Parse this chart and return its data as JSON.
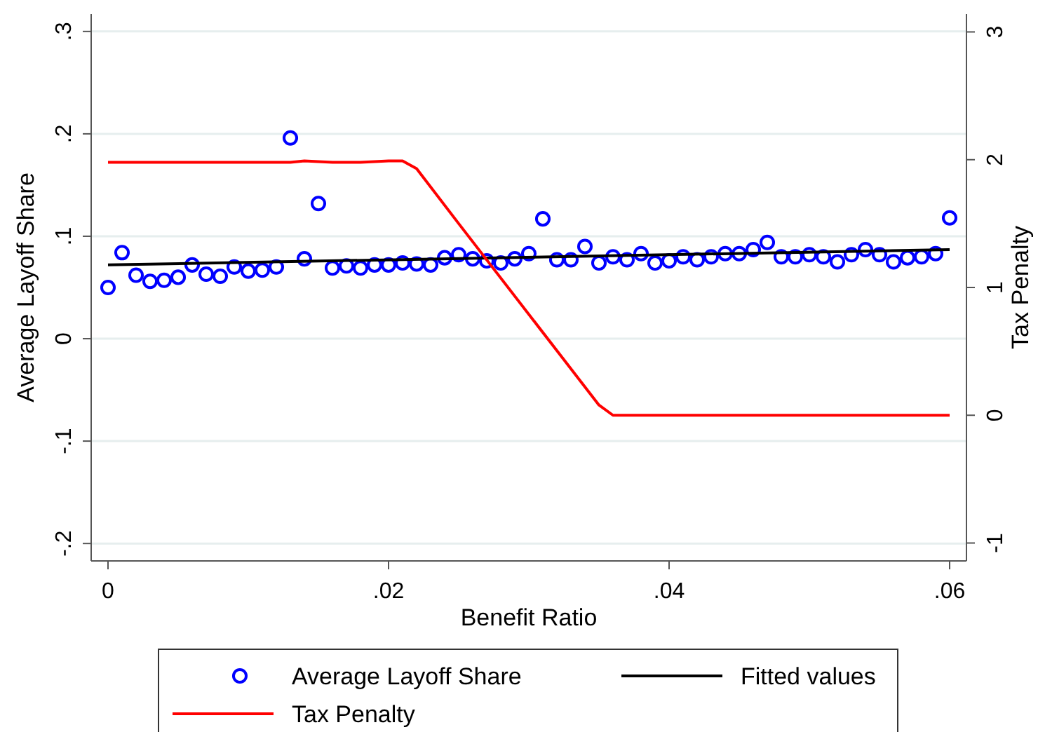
{
  "chart_data": {
    "type": "scatter",
    "xlabel": "Benefit Ratio",
    "ylabel": "Average Layoff Share",
    "y2label": "Tax Penalty",
    "xlim": [
      -0.0012,
      0.0612
    ],
    "xticks": [
      {
        "value": 0,
        "label": "0"
      },
      {
        "value": 0.02,
        "label": ".02"
      },
      {
        "value": 0.04,
        "label": ".04"
      },
      {
        "value": 0.06,
        "label": ".06"
      }
    ],
    "ylim": [
      -0.217,
      0.317
    ],
    "yticks": [
      {
        "value": -0.2,
        "label": "-.2"
      },
      {
        "value": -0.1,
        "label": "-.1"
      },
      {
        "value": 0,
        "label": "0"
      },
      {
        "value": 0.1,
        "label": ".1"
      },
      {
        "value": 0.2,
        "label": ".2"
      },
      {
        "value": 0.3,
        "label": ".3"
      }
    ],
    "y2lim": [
      -1.14,
      3.14
    ],
    "y2ticks": [
      -1,
      0,
      1,
      2,
      3
    ],
    "grid": "y",
    "legend": "bottom",
    "series": [
      {
        "name": "Average Layoff Share",
        "marker": "circle",
        "color": "#0000ff",
        "x": [
          0,
          0.001,
          0.002,
          0.003,
          0.004,
          0.005,
          0.006,
          0.007,
          0.008,
          0.009,
          0.01,
          0.011,
          0.012,
          0.013,
          0.014,
          0.015,
          0.016,
          0.017,
          0.018,
          0.019,
          0.02,
          0.021,
          0.022,
          0.023,
          0.024,
          0.025,
          0.026,
          0.027,
          0.028,
          0.029,
          0.03,
          0.031,
          0.032,
          0.033,
          0.034,
          0.035,
          0.036,
          0.037,
          0.038,
          0.039,
          0.04,
          0.041,
          0.042,
          0.043,
          0.044,
          0.045,
          0.046,
          0.047,
          0.048,
          0.049,
          0.05,
          0.051,
          0.052,
          0.053,
          0.054,
          0.055,
          0.056,
          0.057,
          0.058,
          0.059,
          0.06
        ],
        "values": [
          0.05,
          0.084,
          0.062,
          0.056,
          0.057,
          0.06,
          0.072,
          0.063,
          0.061,
          0.07,
          0.066,
          0.067,
          0.07,
          0.196,
          0.078,
          0.132,
          0.069,
          0.071,
          0.069,
          0.072,
          0.072,
          0.074,
          0.073,
          0.072,
          0.079,
          0.082,
          0.078,
          0.076,
          0.074,
          0.078,
          0.083,
          0.117,
          0.077,
          0.077,
          0.09,
          0.074,
          0.08,
          0.077,
          0.083,
          0.074,
          0.076,
          0.08,
          0.077,
          0.08,
          0.083,
          0.083,
          0.087,
          0.094,
          0.08,
          0.08,
          0.082,
          0.08,
          0.075,
          0.082,
          0.087,
          0.082,
          0.075,
          0.079,
          0.08,
          0.083,
          0.118
        ]
      },
      {
        "name": "Fitted values",
        "type": "line",
        "line_style": "solid",
        "color": "#000000",
        "x": [
          0,
          0.06
        ],
        "values": [
          0.072,
          0.087
        ]
      },
      {
        "name": "Tax Penalty",
        "type": "line",
        "line_style": "solid",
        "axis": "y2",
        "color": "#ff0000",
        "x": [
          0,
          0.013,
          0.014,
          0.016,
          0.018,
          0.02,
          0.021,
          0.022,
          0.025,
          0.035,
          0.036,
          0.06
        ],
        "values": [
          1.98,
          1.98,
          1.99,
          1.98,
          1.98,
          1.99,
          1.99,
          1.93,
          1.5,
          0.08,
          0,
          0
        ]
      }
    ]
  }
}
